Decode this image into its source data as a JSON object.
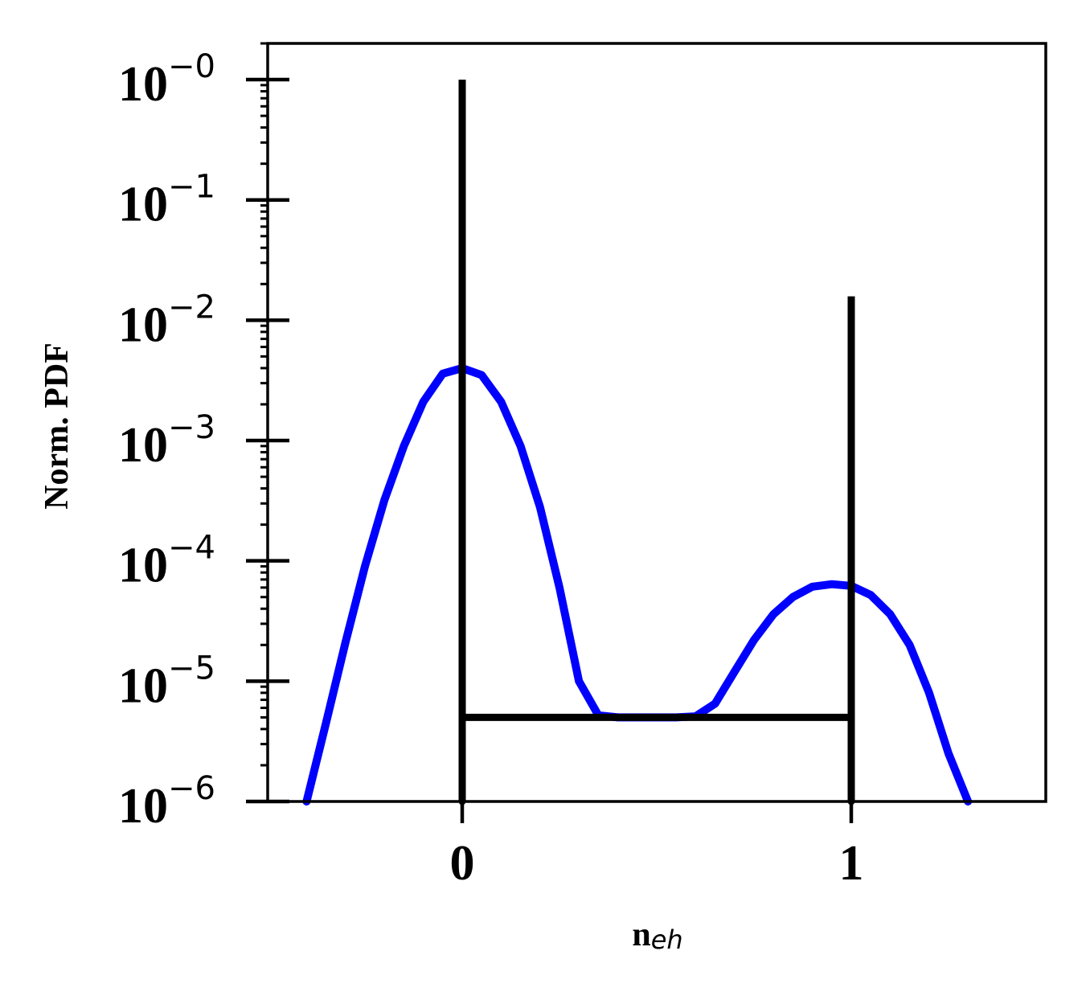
{
  "chart_data": {
    "type": "line",
    "xlabel": "n",
    "xlabel_subscript": "eh",
    "ylabel": "Norm. PDF",
    "xlim": [
      -0.5,
      1.5
    ],
    "ylim": [
      1e-06,
      2.0
    ],
    "yscale": "log",
    "grid": false,
    "legend": "none",
    "x_ticks": [
      {
        "value": 0,
        "label": "0"
      },
      {
        "value": 1,
        "label": "1"
      }
    ],
    "y_ticks": [
      {
        "value": 1,
        "base": "10",
        "exp": "−0"
      },
      {
        "value": 0.1,
        "base": "10",
        "exp": "−1"
      },
      {
        "value": 0.01,
        "base": "10",
        "exp": "−2"
      },
      {
        "value": 0.001,
        "base": "10",
        "exp": "−3"
      },
      {
        "value": 0.0001,
        "base": "10",
        "exp": "−4"
      },
      {
        "value": 1e-05,
        "base": "10",
        "exp": "−5"
      },
      {
        "value": 1e-06,
        "base": "10",
        "exp": "−6"
      }
    ],
    "series": [
      {
        "color": "#0000ff",
        "style": "line",
        "x": [
          -0.4,
          -0.35,
          -0.3,
          -0.25,
          -0.2,
          -0.15,
          -0.1,
          -0.05,
          0.0,
          0.05,
          0.1,
          0.15,
          0.2,
          0.25,
          0.3,
          0.35,
          0.4,
          0.45,
          0.5,
          0.55,
          0.6,
          0.65,
          0.7,
          0.75,
          0.8,
          0.85,
          0.9,
          0.95,
          1.0,
          1.05,
          1.1,
          1.15,
          1.2,
          1.25,
          1.3
        ],
        "y": [
          1e-06,
          4.5e-06,
          2.1e-05,
          9e-05,
          0.00032,
          0.0009,
          0.0021,
          0.0036,
          0.004,
          0.0035,
          0.0021,
          0.0009,
          0.00028,
          6e-05,
          1e-05,
          5.2e-06,
          5e-06,
          5e-06,
          5e-06,
          5e-06,
          5.1e-06,
          6.5e-06,
          1.2e-05,
          2.2e-05,
          3.6e-05,
          5e-05,
          6.1e-05,
          6.4e-05,
          6.2e-05,
          5.2e-05,
          3.6e-05,
          2e-05,
          8e-06,
          2.5e-06,
          1e-06
        ]
      },
      {
        "color": "#000000",
        "style": "line",
        "x": [
          0,
          0,
          0,
          1,
          1,
          1
        ],
        "y": [
          1e-06,
          1,
          5e-06,
          5e-06,
          0.0158,
          1e-06
        ]
      }
    ]
  }
}
